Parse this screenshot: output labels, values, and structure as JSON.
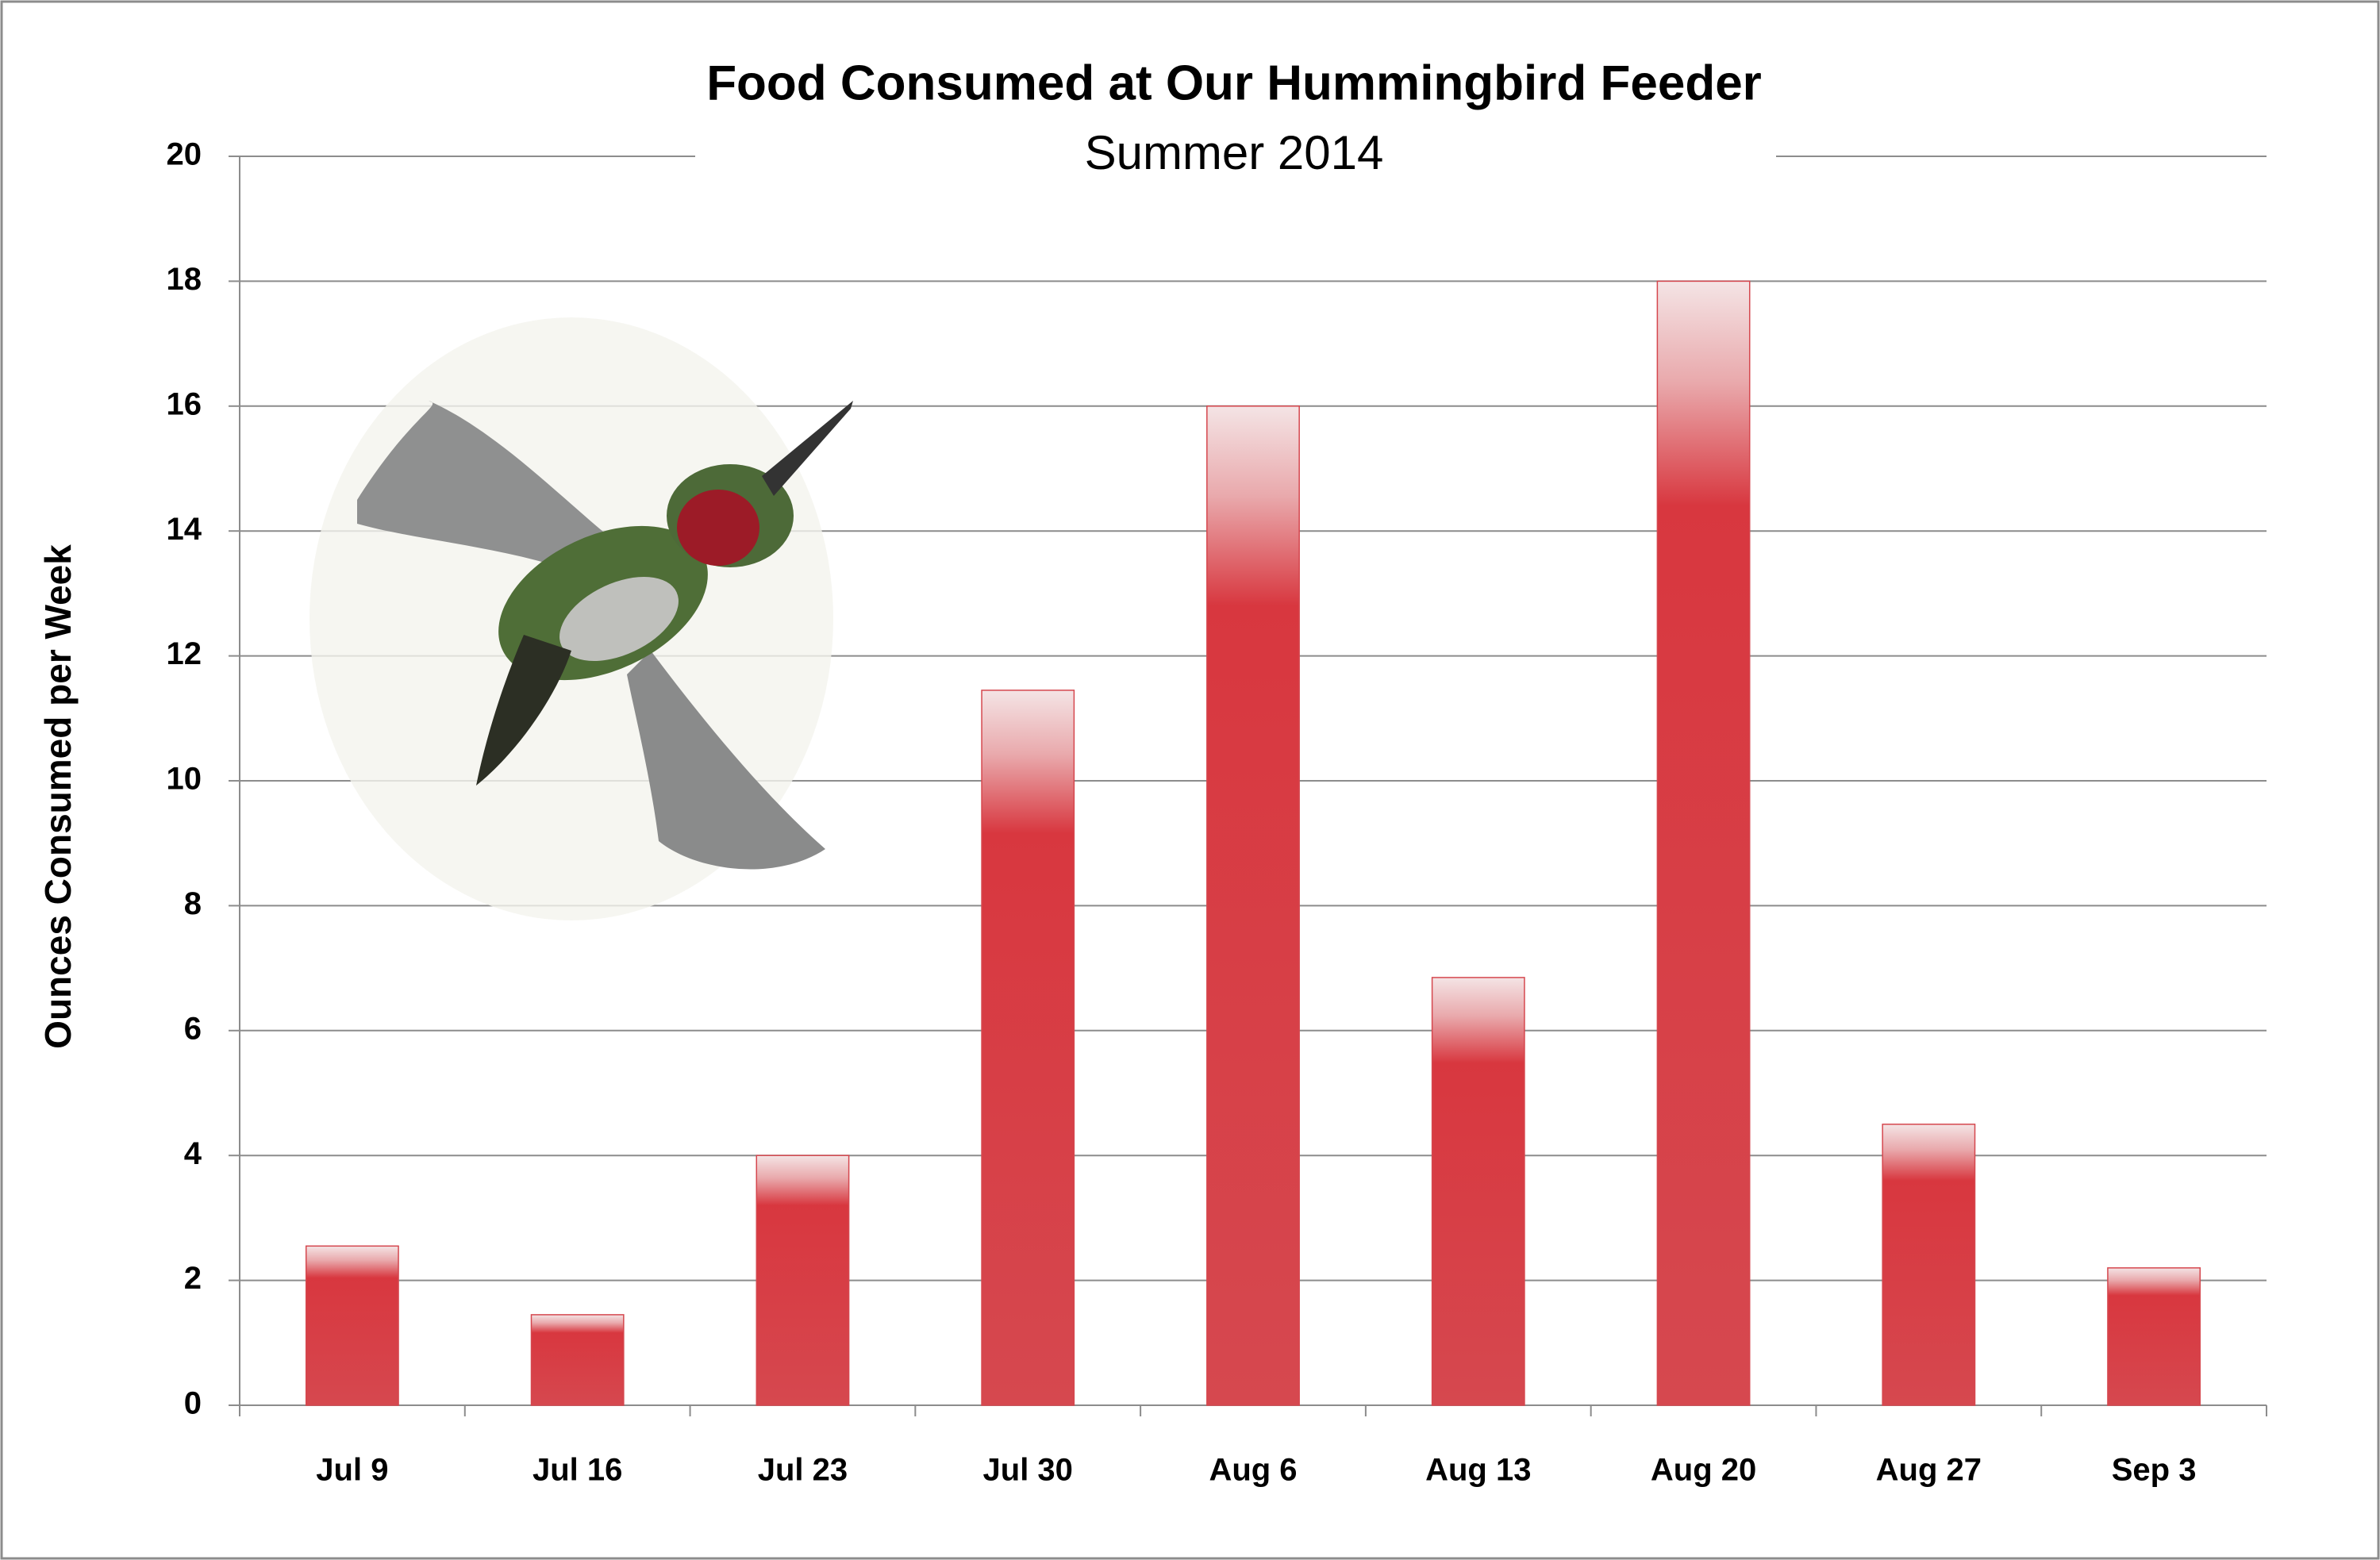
{
  "chart_data": {
    "type": "bar",
    "title": "Food Consumed at Our Hummingbird Feeder",
    "subtitle": "Summer 2014",
    "y_label": "Ounces Consumed per Week",
    "categories": [
      "Jul 9",
      "Jul 16",
      "Jul 23",
      "Jul 30",
      "Aug 6",
      "Aug 13",
      "Aug 20",
      "Aug 27",
      "Sep 3"
    ],
    "values": [
      2.55,
      1.45,
      4.0,
      11.45,
      16.0,
      6.85,
      18.0,
      4.5,
      2.2
    ],
    "color": "#d5474e",
    "ylim": [
      0,
      20
    ],
    "yticks": [
      0,
      2,
      4,
      6,
      8,
      10,
      12,
      14,
      16,
      18,
      20
    ],
    "grid": true
  }
}
